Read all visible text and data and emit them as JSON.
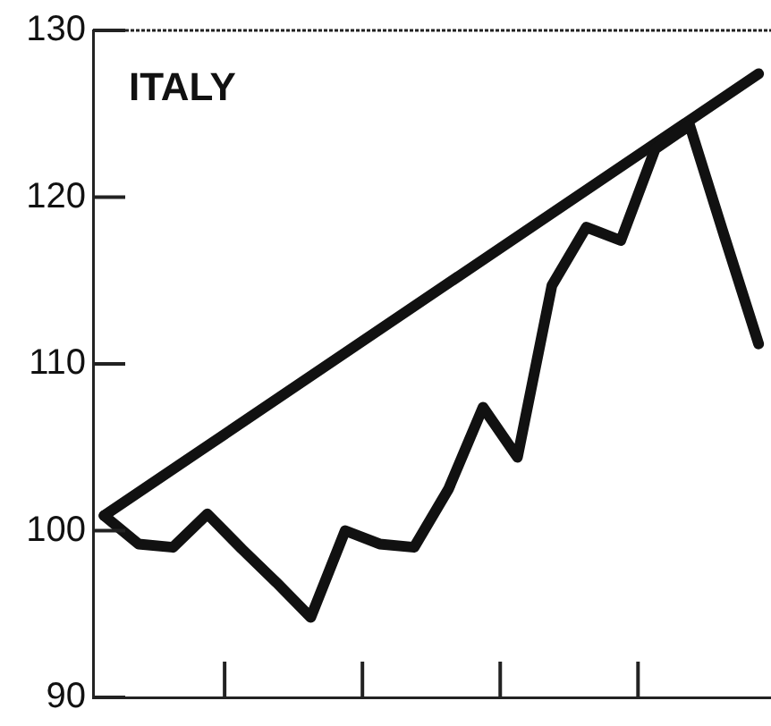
{
  "chart_data": {
    "type": "line",
    "title": "ITALY",
    "categories": [
      null,
      null,
      null,
      null,
      null,
      null,
      null,
      null,
      null,
      null,
      null,
      null,
      null,
      null,
      null,
      null,
      null,
      null,
      null,
      null
    ],
    "ylim": [
      90,
      130
    ],
    "yticks": [
      90,
      100,
      110,
      120,
      130
    ],
    "grid": false,
    "legend": false,
    "marker": "none",
    "line_style": "solid",
    "series": [
      {
        "color": "#111111",
        "values": [
          100.9,
          99.2,
          99.0,
          101.0,
          98.9,
          96.9,
          94.8,
          100.0,
          99.2,
          99.0,
          102.5,
          107.4,
          104.4,
          114.7,
          118.2,
          117.4,
          122.9,
          124.3,
          117.7,
          111.2
        ]
      },
      {
        "color": "#111111",
        "values": [
          100.9,
          null,
          null,
          null,
          null,
          null,
          null,
          null,
          null,
          null,
          null,
          null,
          null,
          null,
          null,
          null,
          null,
          null,
          null,
          127.4
        ]
      }
    ]
  }
}
